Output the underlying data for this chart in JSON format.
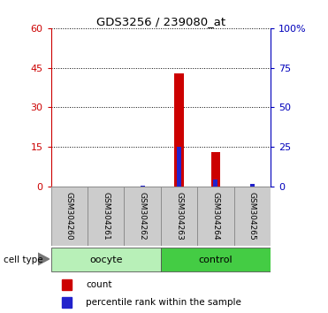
{
  "title": "GDS3256 / 239080_at",
  "samples": [
    "GSM304260",
    "GSM304261",
    "GSM304262",
    "GSM304263",
    "GSM304264",
    "GSM304265"
  ],
  "count_values": [
    0,
    0,
    0,
    43,
    13,
    0
  ],
  "percentile_values": [
    0,
    0,
    0.5,
    25,
    4,
    1.5
  ],
  "cell_types": [
    {
      "label": "oocyte",
      "samples": [
        0,
        1,
        2
      ],
      "color": "#b8f0b8"
    },
    {
      "label": "control",
      "samples": [
        3,
        4,
        5
      ],
      "color": "#44cc44"
    }
  ],
  "left_yticks": [
    0,
    15,
    30,
    45,
    60
  ],
  "right_yticks": [
    0,
    25,
    50,
    75,
    100
  ],
  "right_yticklabels": [
    "0",
    "25",
    "50",
    "75",
    "100%"
  ],
  "left_color": "#cc0000",
  "right_color": "#0000bb",
  "bar_color_count": "#cc0000",
  "bar_color_pct": "#2222cc",
  "ylim_left": [
    0,
    60
  ],
  "ylim_right": [
    0,
    100
  ],
  "sample_box_color": "#cccccc",
  "cell_type_label": "cell type"
}
